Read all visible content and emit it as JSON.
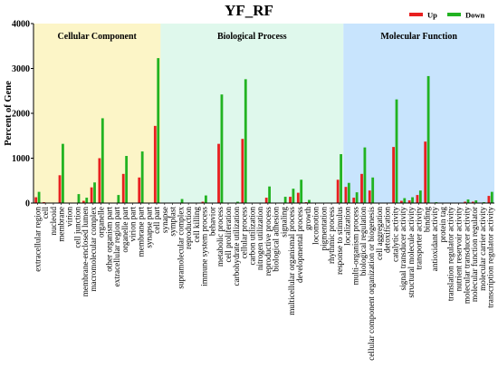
{
  "chart_data": {
    "type": "bar",
    "title": "YF_RF",
    "xlabel": "",
    "ylabel": "Percent of Gene",
    "ylim": [
      0,
      4000
    ],
    "yticks": [
      0,
      1000,
      2000,
      3000,
      4000
    ],
    "grid": false,
    "legend_position": "top-right",
    "series": [
      {
        "name": "Up",
        "color": "#e82020"
      },
      {
        "name": "Down",
        "color": "#22b322"
      }
    ],
    "sections": [
      {
        "label": "Cellular Component",
        "start": 0,
        "end": 15,
        "color": "#fcf5c7"
      },
      {
        "label": "Biological Process",
        "start": 16,
        "end": 38,
        "color": "#dff8ec"
      },
      {
        "label": "Molecular Function",
        "start": 39,
        "end": 50,
        "color": "#c8e4fd"
      }
    ],
    "categories": [
      "extracellular region",
      "cell",
      "nucleoid",
      "membrane",
      "virion",
      "cell junction",
      "membrane-enclosed lumen",
      "macromolecular complex",
      "organelle",
      "other organism part",
      "extracellular region part",
      "organelle part",
      "virion part",
      "membrane part",
      "synapse part",
      "cell part",
      "synapse",
      "symplast",
      "supramolecular complex",
      "reproduction",
      "cell killing",
      "immune system process",
      "behavior",
      "metabolic process",
      "cell proliferation",
      "carbohydrate utilization",
      "cellular process",
      "carbon utilization",
      "nitrogen utilization",
      "reproductive process",
      "biological adhesion",
      "signaling",
      "multicellular organismal process",
      "developmental process",
      "growth",
      "locomotion",
      "pigmentation",
      "rhythmic process",
      "response to stimulus",
      "localization",
      "multi-organism process",
      "biological regulation",
      "cellular component organization or biogenesis",
      "cell aggregation",
      "detoxification",
      "catalytic activity",
      "signal transducer activity",
      "structural molecule activity",
      "transporter activity",
      "binding",
      "antioxidant activity",
      "protein tag",
      "translation regulator activity",
      "nutrient reservoir activity",
      "molecular transducer activity",
      "molecular function regulator",
      "molecular carrier activity",
      "transcription regulator activity"
    ],
    "up": [
      130,
      20,
      0,
      620,
      0,
      0,
      50,
      350,
      1000,
      0,
      0,
      650,
      0,
      570,
      0,
      1720,
      0,
      0,
      0,
      0,
      0,
      30,
      0,
      1320,
      0,
      0,
      1430,
      0,
      0,
      120,
      0,
      0,
      140,
      230,
      20,
      0,
      0,
      0,
      520,
      360,
      120,
      650,
      280,
      0,
      0,
      1250,
      50,
      60,
      180,
      1370,
      0,
      0,
      0,
      0,
      30,
      30,
      10,
      160
    ],
    "down": [
      250,
      0,
      0,
      1320,
      0,
      200,
      120,
      460,
      1890,
      0,
      180,
      1050,
      0,
      1150,
      0,
      3230,
      0,
      0,
      90,
      0,
      0,
      170,
      0,
      2420,
      0,
      30,
      2760,
      0,
      0,
      370,
      0,
      140,
      320,
      520,
      70,
      0,
      0,
      0,
      1090,
      450,
      240,
      1240,
      570,
      0,
      0,
      2310,
      110,
      130,
      280,
      2830,
      20,
      0,
      0,
      0,
      80,
      60,
      20,
      250
    ]
  }
}
